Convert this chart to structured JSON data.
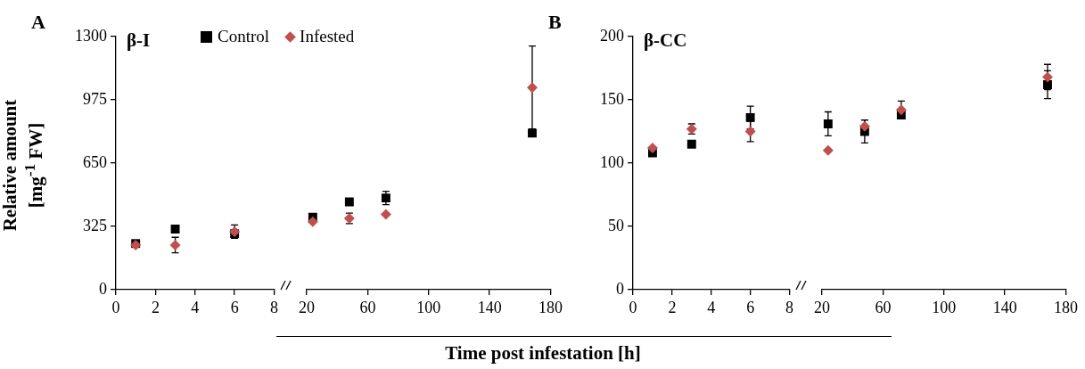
{
  "chart_data": [
    {
      "type": "scatter",
      "title": "β-I",
      "annotations": [
        "A"
      ],
      "ylabel": "Relative amount [mg$^{-1}$ FW]",
      "x": [
        1,
        3,
        6
      ],
      "xlim": [
        0,
        8
      ],
      "xticks": [
        0,
        2,
        4,
        6,
        8
      ],
      "ylim": [
        0,
        1300
      ],
      "yticks": [
        0,
        325,
        650,
        975,
        1300
      ],
      "grid": false,
      "legend": "top",
      "series": [
        {
          "name": "Control",
          "color": "#000000",
          "marker": "square",
          "values": [
            237,
            311,
            288
          ],
          "errors": [
            null,
            null,
            null
          ]
        },
        {
          "name": "Infested",
          "color": "#c0504d",
          "marker": "diamond",
          "values": [
            229,
            229,
            298
          ],
          "errors": [
            null,
            40,
            34
          ]
        }
      ]
    },
    {
      "type": "scatter",
      "xlabel": "Time post infestation [h]",
      "x": [
        24,
        48,
        72,
        168
      ],
      "xlim": [
        20,
        180
      ],
      "xticks": [
        20,
        60,
        100,
        140,
        180
      ],
      "ylim": [
        0,
        1300
      ],
      "grid": false,
      "tick_labels": "x",
      "series": [
        {
          "color": "#000000",
          "marker": "square",
          "values": [
            372,
            451,
            471,
            804
          ],
          "errors": [
            null,
            null,
            34,
            null
          ]
        },
        {
          "color": "#c0504d",
          "marker": "diamond",
          "values": [
            349,
            366,
            387,
            1038
          ],
          "errors": [
            null,
            27,
            null,
            213
          ]
        }
      ]
    },
    {
      "type": "scatter",
      "title": "β-CC",
      "annotations": [
        "B"
      ],
      "x": [
        1,
        3,
        6
      ],
      "xlim": [
        0,
        8
      ],
      "xticks": [
        0,
        2,
        4,
        6,
        8
      ],
      "ylim": [
        0,
        200
      ],
      "yticks": [
        0,
        50,
        100,
        150,
        200
      ],
      "grid": false,
      "series": [
        {
          "color": "#000000",
          "marker": "square",
          "values": [
            108,
            115,
            136
          ],
          "errors": [
            null,
            null,
            9
          ]
        },
        {
          "color": "#c0504d",
          "marker": "diamond",
          "values": [
            112,
            127,
            125
          ],
          "errors": [
            null,
            4,
            8
          ]
        }
      ]
    },
    {
      "type": "scatter",
      "x": [
        24,
        48,
        72,
        168
      ],
      "xlim": [
        20,
        180
      ],
      "xticks": [
        20,
        60,
        100,
        140,
        180
      ],
      "ylim": [
        0,
        200
      ],
      "grid": false,
      "tick_labels": "x",
      "series": [
        {
          "color": "#000000",
          "marker": "square",
          "values": [
            131,
            125,
            138,
            162
          ],
          "errors": [
            9.5,
            9,
            null,
            11
          ]
        },
        {
          "color": "#c0504d",
          "marker": "diamond",
          "values": [
            110,
            129,
            142,
            168
          ],
          "errors": [
            null,
            5,
            7,
            10
          ]
        }
      ]
    }
  ]
}
